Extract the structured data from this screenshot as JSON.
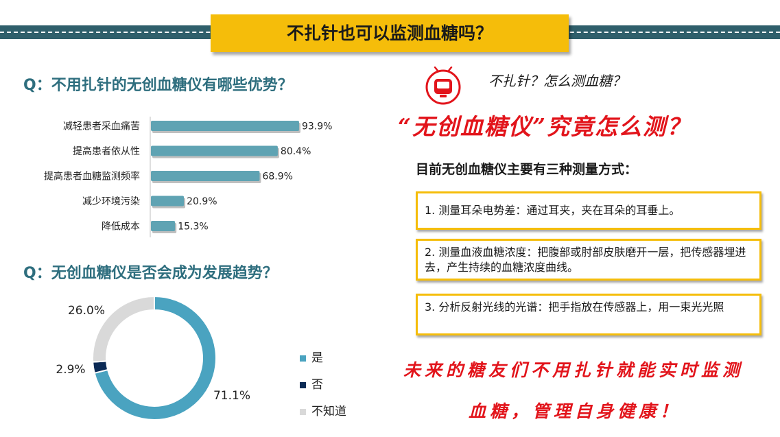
{
  "header": {
    "title": "不扎针也可以监测血糖吗？"
  },
  "questions": {
    "q1": "Q：不用扎针的无创血糖仪有哪些优势？",
    "q2": "Q：无创血糖仪是否会成为发展趋势？"
  },
  "chart_data": [
    {
      "type": "bar",
      "orientation": "horizontal",
      "categories": [
        "减轻患者采血痛苦",
        "提高患者依从性",
        "提高患者血糖监测频率",
        "减少环境污染",
        "降低成本"
      ],
      "values": [
        93.9,
        80.4,
        68.9,
        20.9,
        15.3
      ],
      "value_labels": [
        "93.9%",
        "80.4%",
        "68.9%",
        "20.9%",
        "15.3%"
      ],
      "xlim": [
        0,
        100
      ],
      "color": "#5fa3b3"
    },
    {
      "type": "pie",
      "style": "donut",
      "labels": [
        "是",
        "否",
        "不知道"
      ],
      "values": [
        71.1,
        2.9,
        26.0
      ],
      "value_labels": [
        "71.1%",
        "2.9%",
        "26.0%"
      ],
      "colors": [
        "#4aa3c0",
        "#0b2a55",
        "#d9d9d9"
      ],
      "legend_position": "right"
    }
  ],
  "right_panel": {
    "icon": "clock-icon",
    "script_line_1": "不扎针？怎么测血糖？",
    "script_line_2": "“无创血糖仪”究竟怎么测？",
    "methods_title": "目前无创血糖仪主要有三种测量方式：",
    "methods": [
      "1. 测量耳朵电势差：通过耳夹，夹在耳朵的耳垂上。",
      "2. 测量血液血糖浓度：把腹部或肘部皮肤磨开一层，把传感器埋进去，产生持续的血糖浓度曲线。",
      "3. 分析反射光线的光谱：把手指放在传感器上，用一束光光照"
    ],
    "footer_line_1": "未来的糖友们不用扎针就能实时监测",
    "footer_line_2": "血糖，管理自身健康！"
  },
  "colors": {
    "accent_yellow": "#f5bd0a",
    "header_teal": "#2f5f6b",
    "title_teal": "#2e6e7e",
    "script_red": "#e2141b"
  }
}
